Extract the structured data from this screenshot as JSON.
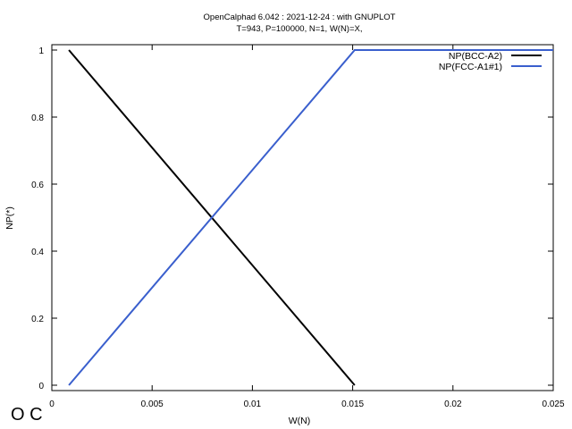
{
  "logo_text": "O C",
  "chart_data": {
    "type": "line",
    "title": "OpenCalphad   6.042 :  2021-12-24 : with GNUPLOT",
    "subtitle": "T=943, P=100000, N=1, W(N)=X,",
    "xlabel": "W(N)",
    "ylabel": "NP(*)",
    "xlim": [
      0,
      0.025
    ],
    "ylim": [
      0,
      1
    ],
    "xticks": [
      0,
      0.005,
      0.01,
      0.015,
      0.02,
      0.025
    ],
    "xtick_labels": [
      "0",
      "0.005",
      "0.01",
      "0.015",
      "0.02",
      "0.025"
    ],
    "yticks": [
      0,
      0.2,
      0.4,
      0.6,
      0.8,
      1
    ],
    "ytick_labels": [
      "0",
      "0.2",
      "0.4",
      "0.6",
      "0.8",
      "1"
    ],
    "grid": false,
    "legend_position": "top-right",
    "series": [
      {
        "name": "NP(BCC-A2)",
        "color": "#000000",
        "x": [
          0.00085,
          0.0151
        ],
        "y": [
          1,
          0
        ]
      },
      {
        "name": "NP(FCC-A1#1)",
        "color": "#3a5fcd",
        "x": [
          0.00085,
          0.0151,
          0.025
        ],
        "y": [
          0,
          1,
          1
        ]
      }
    ]
  }
}
